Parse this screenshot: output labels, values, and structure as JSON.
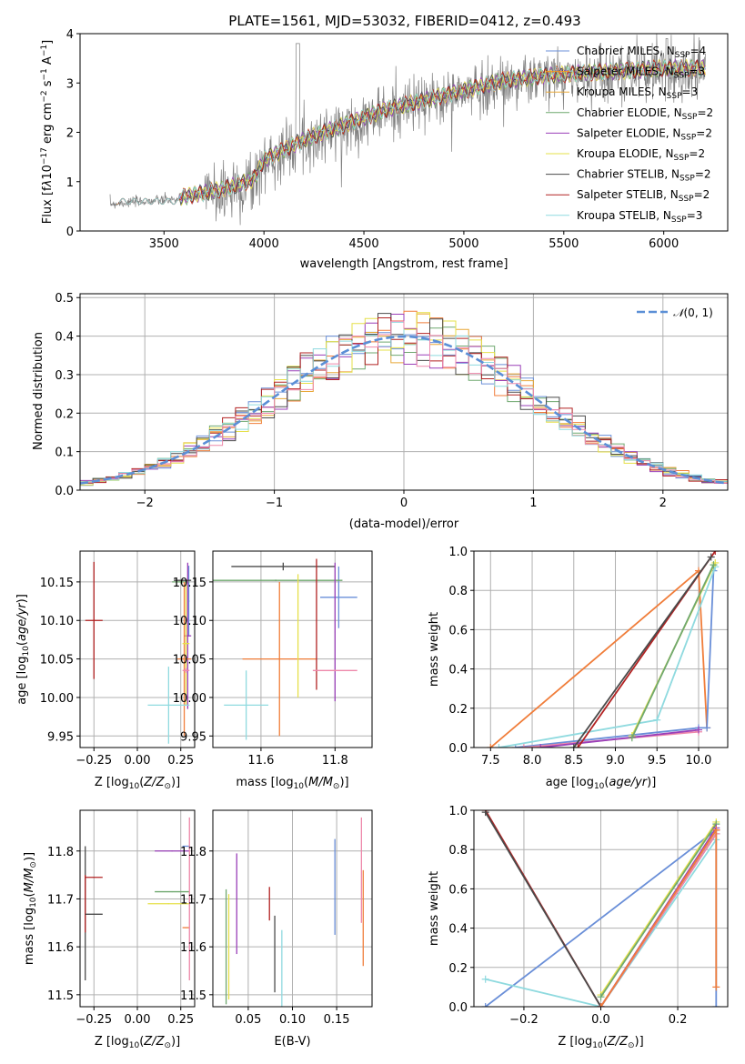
{
  "chart_data": [
    {
      "id": "spectrum",
      "type": "line",
      "title": "PLATE=1561, MJD=53032, FIBERID=0412, z=0.493",
      "xlabel": "wavelength [Angstrom, rest frame]",
      "ylabel_html": "Flux [f<tspan font-style='italic'>λ</tspan>10<tspan dy='-5' font-size='9'>−17</tspan><tspan dy='5'> erg cm</tspan><tspan dy='-5' font-size='9'>−2</tspan><tspan dy='5'> s</tspan><tspan dy='-5' font-size='9'>−1</tspan><tspan dy='5'> A</tspan><tspan dy='-5' font-size='9'>−1</tspan><tspan dy='5'>]</tspan>",
      "xlim": [
        3080,
        6320
      ],
      "ylim": [
        0,
        4
      ],
      "xticks": [
        3500,
        4000,
        4500,
        5000,
        5500,
        6000
      ],
      "yticks": [
        0,
        1,
        2,
        3,
        4
      ],
      "grid": false,
      "legend_location": "upper right",
      "observed_color": "#808080",
      "observed_trend": {
        "x": [
          3230,
          3400,
          3600,
          3800,
          3950,
          4000,
          4200,
          4400,
          4600,
          4800,
          5000,
          5200,
          5400,
          5600,
          5800,
          6000,
          6200
        ],
        "y": [
          0.55,
          0.6,
          0.65,
          0.8,
          1.0,
          1.4,
          1.8,
          2.1,
          2.4,
          2.6,
          2.8,
          3.0,
          3.1,
          3.15,
          3.2,
          3.25,
          3.25
        ]
      },
      "series": [
        {
          "name_html": "Chabrier MILES, N<tspan dy='3' font-size='9'>SSP</tspan><tspan dy='-3'>=4</tspan>",
          "color": "#6a8fd8"
        },
        {
          "name_html": "Salpeter MILES, N<tspan dy='3' font-size='9'>SSP</tspan><tspan dy='-3'>=3</tspan>",
          "color": "#f5961e"
        },
        {
          "name_html": "Kroupa MILES, N<tspan dy='3' font-size='9'>SSP</tspan><tspan dy='-3'>=3</tspan>",
          "color": "#e8a838"
        },
        {
          "name_html": "Chabrier ELODIE, N<tspan dy='3' font-size='9'>SSP</tspan><tspan dy='-3'>=2</tspan>",
          "color": "#6fa86f"
        },
        {
          "name_html": "Salpeter ELODIE, N<tspan dy='3' font-size='9'>SSP</tspan><tspan dy='-3'>=2</tspan>",
          "color": "#9a3fb8"
        },
        {
          "name_html": "Kroupa ELODIE, N<tspan dy='3' font-size='9'>SSP</tspan><tspan dy='-3'>=2</tspan>",
          "color": "#e6e04a"
        },
        {
          "name_html": "Chabrier STELIB, N<tspan dy='3' font-size='9'>SSP</tspan><tspan dy='-3'>=2</tspan>",
          "color": "#4a4a4a"
        },
        {
          "name_html": "Salpeter STELIB, N<tspan dy='3' font-size='9'>SSP</tspan><tspan dy='-3'>=2</tspan>",
          "color": "#b22222"
        },
        {
          "name_html": "Kroupa STELIB, N<tspan dy='3' font-size='9'>SSP</tspan><tspan dy='-3'>=3</tspan>",
          "color": "#8fdadf"
        }
      ]
    },
    {
      "id": "residuals",
      "type": "histogram",
      "xlabel": "(data-model)/error",
      "ylabel": "Normed distribution",
      "xlim": [
        -2.5,
        2.5
      ],
      "ylim": [
        0,
        0.51
      ],
      "xticks": [
        -2,
        -1,
        0,
        1,
        2
      ],
      "yticks": [
        0.0,
        0.1,
        0.2,
        0.3,
        0.4,
        0.5
      ],
      "grid": true,
      "legend_location": "upper right",
      "reference_curve": {
        "label_html": "<tspan font-style='italic'>𝒩</tspan>(0, 1)",
        "color": "#5b8fd6",
        "dash": true,
        "mean": 0,
        "sigma": 1
      },
      "bin_width": 0.1,
      "histogram_colors": [
        "#6a8fd8",
        "#f07d3a",
        "#e8a838",
        "#6fa86f",
        "#9a3fb8",
        "#e6e04a",
        "#4a4a4a",
        "#b22222",
        "#8fdadf",
        "#ee88aa"
      ]
    },
    {
      "id": "age-vs-Z",
      "type": "errorbar",
      "xlabel_html": "Z [log<tspan dy='3' font-size='9'>10</tspan><tspan dy='-3'>(</tspan><tspan font-style='italic'>Z/Z</tspan><tspan dy='3' font-size='9'>⊙</tspan><tspan dy='-3'>)]</tspan>",
      "ylabel_html": "age  [log<tspan dy='3' font-size='9'>10</tspan><tspan dy='-3'>(</tspan><tspan font-style='italic'>age/yr</tspan>)]",
      "xlim": [
        -0.33,
        0.33
      ],
      "ylim": [
        9.935,
        10.19
      ],
      "xticks": [
        -0.25,
        0.0,
        0.25
      ],
      "xticklabels": [
        "−0.25",
        "0.00",
        "0.25"
      ],
      "yticks": [
        9.95,
        10.0,
        10.05,
        10.1,
        10.15
      ],
      "yticklabels": [
        "9.95",
        "10.00",
        "10.05",
        "10.10",
        "10.15"
      ],
      "grid": true,
      "points": [
        {
          "x": 0.296,
          "xerr": 0.004,
          "y": 10.125,
          "yerr": 0.046,
          "color": "#6a8fd8"
        },
        {
          "x": 0.25,
          "xerr": 0.05,
          "y": 10.15,
          "yerr": 0.002,
          "color": "#6fa86f"
        },
        {
          "x": 0.29,
          "xerr": 0.02,
          "y": 10.08,
          "yerr": 0.095,
          "color": "#9a3fb8"
        },
        {
          "x": 0.27,
          "xerr": 0.04,
          "y": 10.05,
          "yerr": 0.1,
          "color": "#f07d3a"
        },
        {
          "x": 0.28,
          "xerr": 0.02,
          "y": 10.07,
          "yerr": 0.08,
          "color": "#e6e04a"
        },
        {
          "x": 0.26,
          "xerr": 0.05,
          "y": 10.152,
          "yerr": 0.001,
          "color": "#4a4a4a"
        },
        {
          "x": -0.25,
          "xerr": 0.05,
          "y": 10.1,
          "yerr": 0.076,
          "color": "#b22222"
        },
        {
          "x": 0.18,
          "xerr": 0.12,
          "y": 9.99,
          "yerr": 0.05,
          "color": "#8fdadf"
        },
        {
          "x": 0.28,
          "xerr": 0.02,
          "y": 10.035,
          "yerr": 0.003,
          "color": "#ee88aa"
        }
      ]
    },
    {
      "id": "age-vs-mass",
      "type": "errorbar",
      "xlabel_html": "mass [log<tspan dy='3' font-size='9'>10</tspan><tspan dy='-3'>(</tspan><tspan font-style='italic'>M/M</tspan><tspan dy='3' font-size='9'>⊙</tspan><tspan dy='-3'>)]</tspan>",
      "xlim": [
        11.47,
        11.9
      ],
      "ylim": [
        9.935,
        10.19
      ],
      "xticks": [
        11.6,
        11.8
      ],
      "xticklabels": [
        "11.6",
        "11.8"
      ],
      "yticks": [
        9.95,
        10.0,
        10.05,
        10.1,
        10.15
      ],
      "yticklabels": [
        "9.95",
        "10.00",
        "10.05",
        "10.10",
        "10.15"
      ],
      "grid": true,
      "points": [
        {
          "x": 11.81,
          "xerr": 0.05,
          "y": 10.13,
          "yerr": 0.04,
          "color": "#6a8fd8"
        },
        {
          "x": 11.66,
          "xerr": 0.14,
          "y": 10.17,
          "yerr": 0.005,
          "color": "#4a4a4a"
        },
        {
          "x": 11.64,
          "xerr": 0.18,
          "y": 10.152,
          "yerr": 0.001,
          "color": "#6fa86f"
        },
        {
          "x": 11.65,
          "xerr": 0.1,
          "y": 10.05,
          "yerr": 0.1,
          "color": "#f07d3a"
        },
        {
          "x": 11.8,
          "xerr": 0.001,
          "y": 10.085,
          "yerr": 0.09,
          "color": "#9a3fb8"
        },
        {
          "x": 11.7,
          "xerr": 0.001,
          "y": 10.08,
          "yerr": 0.08,
          "color": "#e6e04a"
        },
        {
          "x": 11.75,
          "xerr": 0.001,
          "y": 10.095,
          "yerr": 0.085,
          "color": "#b22222"
        },
        {
          "x": 11.56,
          "xerr": 0.06,
          "y": 9.99,
          "yerr": 0.045,
          "color": "#8fdadf"
        },
        {
          "x": 11.8,
          "xerr": 0.06,
          "y": 10.035,
          "yerr": 0.001,
          "color": "#ee88aa"
        }
      ]
    },
    {
      "id": "weight-vs-age",
      "type": "line",
      "xlabel_html": "age  [log<tspan dy='3' font-size='9'>10</tspan><tspan dy='-3'>(</tspan><tspan font-style='italic'>age/yr</tspan>)]",
      "ylabel": "mass weight",
      "xlim": [
        7.3,
        10.35
      ],
      "ylim": [
        0,
        1
      ],
      "xticks": [
        7.5,
        8.0,
        8.5,
        9.0,
        9.5,
        10.0
      ],
      "xticklabels": [
        "7.5",
        "8.0",
        "8.5",
        "9.0",
        "9.5",
        "10.0"
      ],
      "yticks": [
        0,
        0.2,
        0.4,
        0.6,
        0.8,
        1.0
      ],
      "yticklabels": [
        "0.0",
        "0.2",
        "0.4",
        "0.6",
        "0.8",
        "1.0"
      ],
      "grid": true,
      "lines": [
        {
          "color": "#f07d3a",
          "x": [
            7.5,
            10.0,
            10.1
          ],
          "y": [
            0.0,
            0.9,
            0.1
          ]
        },
        {
          "color": "#6a8fd8",
          "x": [
            7.8,
            10.0,
            10.1,
            10.18
          ],
          "y": [
            0.0,
            0.1,
            0.1,
            0.9
          ]
        },
        {
          "color": "#ee88aa",
          "x": [
            7.9,
            10.0
          ],
          "y": [
            0.0,
            0.08
          ]
        },
        {
          "color": "#9a3fb8",
          "x": [
            8.1,
            10.0
          ],
          "y": [
            0.0,
            0.09
          ]
        },
        {
          "color": "#8fdadf",
          "x": [
            7.6,
            9.5,
            10.2
          ],
          "y": [
            0.0,
            0.14,
            0.92
          ]
        },
        {
          "color": "#e6e04a",
          "x": [
            9.2,
            10.2
          ],
          "y": [
            0.06,
            0.94
          ]
        },
        {
          "color": "#6fa86f",
          "x": [
            9.2,
            10.18
          ],
          "y": [
            0.05,
            0.93
          ]
        },
        {
          "color": "#b22222",
          "x": [
            8.55,
            10.2
          ],
          "y": [
            0.0,
            1.0
          ]
        },
        {
          "color": "#4a4a4a",
          "x": [
            8.5,
            10.15
          ],
          "y": [
            0.0,
            0.97
          ]
        }
      ]
    },
    {
      "id": "mass-vs-Z",
      "type": "errorbar",
      "xlabel_html": "Z [log<tspan dy='3' font-size='9'>10</tspan><tspan dy='-3'>(</tspan><tspan font-style='italic'>Z/Z</tspan><tspan dy='3' font-size='9'>⊙</tspan><tspan dy='-3'>)]</tspan>",
      "ylabel_html": "mass [log<tspan dy='3' font-size='9'>10</tspan><tspan dy='-3'>(</tspan><tspan font-style='italic'>M/M</tspan><tspan dy='3' font-size='9'>⊙</tspan><tspan dy='-3'>)]</tspan>",
      "xlim": [
        -0.33,
        0.33
      ],
      "ylim": [
        11.475,
        11.885
      ],
      "xticks": [
        -0.25,
        0.0,
        0.25
      ],
      "xticklabels": [
        "−0.25",
        "0.00",
        "0.25"
      ],
      "yticks": [
        11.5,
        11.6,
        11.7,
        11.8
      ],
      "yticklabels": [
        "11.5",
        "11.6",
        "11.7",
        "11.8"
      ],
      "grid": true,
      "points": [
        {
          "x": 0.28,
          "xerr": 0.02,
          "y": 11.81,
          "yerr": 0.001,
          "color": "#6a8fd8"
        },
        {
          "x": 0.2,
          "xerr": 0.1,
          "y": 11.8,
          "yerr": 0.001,
          "color": "#9a3fb8"
        },
        {
          "x": 0.2,
          "xerr": 0.1,
          "y": 11.715,
          "yerr": 0.001,
          "color": "#6fa86f"
        },
        {
          "x": 0.18,
          "xerr": 0.12,
          "y": 11.69,
          "yerr": 0.001,
          "color": "#e6e04a"
        },
        {
          "x": 0.28,
          "xerr": 0.02,
          "y": 11.64,
          "yerr": 0.001,
          "color": "#f07d3a"
        },
        {
          "x": -0.3,
          "xerr": 0.001,
          "y": 11.67,
          "yerr": 0.14,
          "color": "#4a4a4a"
        },
        {
          "x": -0.3,
          "xerr": 0.001,
          "y": 11.69,
          "yerr": 0.06,
          "color": "#b22222"
        },
        {
          "x": -0.25,
          "xerr": 0.05,
          "y": 11.745,
          "yerr": 0.001,
          "color": "#b22222"
        },
        {
          "x": -0.25,
          "xerr": 0.05,
          "y": 11.668,
          "yerr": 0.001,
          "color": "#4a4a4a"
        },
        {
          "x": 0.0,
          "xerr": 0.0,
          "y": 11.555,
          "yerr": 0.0,
          "color": "#8fdadf"
        },
        {
          "x": 0.3,
          "xerr": 0.0,
          "y": 11.7,
          "yerr": 0.17,
          "color": "#ee88aa"
        }
      ]
    },
    {
      "id": "mass-vs-ebv",
      "type": "errorbar",
      "xlabel": "E(B-V)",
      "xlim": [
        0.01,
        0.19
      ],
      "ylim": [
        11.475,
        11.885
      ],
      "xticks": [
        0.05,
        0.1,
        0.15
      ],
      "xticklabels": [
        "0.05",
        "0.10",
        "0.15"
      ],
      "yticks": [
        11.5,
        11.6,
        11.7,
        11.8
      ],
      "yticklabels": [
        "11.5",
        "11.6",
        "11.7",
        "11.8"
      ],
      "grid": true,
      "points": [
        {
          "x": 0.025,
          "xerr": 0.0,
          "y": 11.6,
          "yerr": 0.12,
          "color": "#6fa86f"
        },
        {
          "x": 0.028,
          "xerr": 0.0,
          "y": 11.6,
          "yerr": 0.11,
          "color": "#e6e04a"
        },
        {
          "x": 0.037,
          "xerr": 0.0,
          "y": 11.69,
          "yerr": 0.105,
          "color": "#9a3fb8"
        },
        {
          "x": 0.074,
          "xerr": 0.0,
          "y": 11.69,
          "yerr": 0.035,
          "color": "#b22222"
        },
        {
          "x": 0.08,
          "xerr": 0.0,
          "y": 11.585,
          "yerr": 0.08,
          "color": "#4a4a4a"
        },
        {
          "x": 0.088,
          "xerr": 0.0,
          "y": 11.545,
          "yerr": 0.09,
          "color": "#8fdadf"
        },
        {
          "x": 0.148,
          "xerr": 0.0,
          "y": 11.725,
          "yerr": 0.1,
          "color": "#6a8fd8"
        },
        {
          "x": 0.178,
          "xerr": 0.0,
          "y": 11.76,
          "yerr": 0.11,
          "color": "#ee88aa"
        },
        {
          "x": 0.18,
          "xerr": 0.0,
          "y": 11.66,
          "yerr": 0.1,
          "color": "#f07d3a"
        }
      ]
    },
    {
      "id": "weight-vs-Z",
      "type": "line",
      "xlabel_html": "Z [log<tspan dy='3' font-size='9'>10</tspan><tspan dy='-3'>(</tspan><tspan font-style='italic'>Z/Z</tspan><tspan dy='3' font-size='9'>⊙</tspan><tspan dy='-3'>)]</tspan>",
      "ylabel": "mass weight",
      "xlim": [
        -0.33,
        0.33
      ],
      "ylim": [
        0,
        1
      ],
      "xticks": [
        -0.2,
        0.0,
        0.2
      ],
      "xticklabels": [
        "−0.2",
        "0.0",
        "0.2"
      ],
      "yticks": [
        0,
        0.2,
        0.4,
        0.6,
        0.8,
        1.0
      ],
      "yticklabels": [
        "0.0",
        "0.2",
        "0.4",
        "0.6",
        "0.8",
        "1.0"
      ],
      "grid": true,
      "lines": [
        {
          "color": "#6a8fd8",
          "x": [
            -0.3,
            0.3,
            0.3
          ],
          "y": [
            0.0,
            0.9,
            0.0
          ]
        },
        {
          "color": "#8fdadf",
          "x": [
            -0.3,
            0.0,
            0.3
          ],
          "y": [
            0.14,
            0.0,
            0.85
          ]
        },
        {
          "color": "#b22222",
          "x": [
            -0.3,
            0.0,
            0.3
          ],
          "y": [
            1.0,
            0.0,
            0.9
          ]
        },
        {
          "color": "#4a4a4a",
          "x": [
            -0.3,
            0.0,
            0.3
          ],
          "y": [
            0.99,
            0.0,
            0.88
          ]
        },
        {
          "color": "#e6e04a",
          "x": [
            0.0,
            0.3
          ],
          "y": [
            0.06,
            0.94
          ]
        },
        {
          "color": "#6fa86f",
          "x": [
            0.0,
            0.3
          ],
          "y": [
            0.05,
            0.93
          ]
        },
        {
          "color": "#9a3fb8",
          "x": [
            0.0,
            0.3
          ],
          "y": [
            0.0,
            0.91
          ]
        },
        {
          "color": "#ee88aa",
          "x": [
            0.0,
            0.3
          ],
          "y": [
            0.0,
            0.88
          ]
        },
        {
          "color": "#f07d3a",
          "x": [
            0.0,
            0.3,
            0.3
          ],
          "y": [
            0.0,
            0.9,
            0.1
          ]
        }
      ]
    }
  ]
}
